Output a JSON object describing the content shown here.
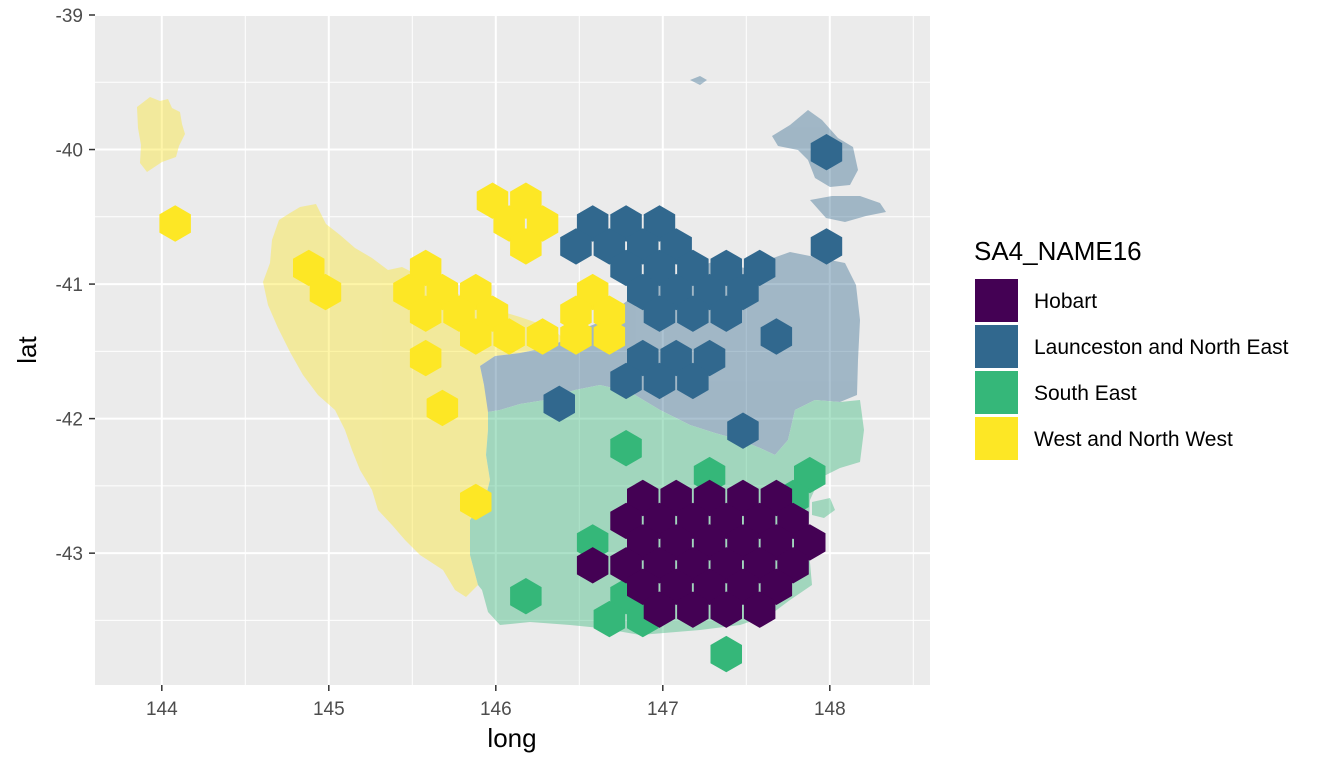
{
  "chart_data": {
    "type": "map",
    "xlabel": "long",
    "ylabel": "lat",
    "xlim": [
      143.6,
      148.6
    ],
    "ylim": [
      -43.98,
      -39.0
    ],
    "x_ticks": [
      144,
      145,
      146,
      147,
      148
    ],
    "x_tick_labels": [
      "144",
      "145",
      "146",
      "147",
      "148"
    ],
    "y_ticks": [
      -39,
      -40,
      -41,
      -42,
      -43
    ],
    "y_tick_labels": [
      "-39",
      "-40",
      "-41",
      "-42",
      "-43"
    ],
    "grid": true,
    "panel_color": "#ebebeb",
    "legend": {
      "title": "SA4_NAME16",
      "position": "right",
      "entries": [
        {
          "name": "Hobart",
          "color": "#440154"
        },
        {
          "name": "Launceston and North East",
          "color": "#31688e"
        },
        {
          "name": "South East",
          "color": "#35b779"
        },
        {
          "name": "West and North West",
          "color": "#fde725"
        }
      ]
    },
    "region_fill_alpha": 0.4,
    "hexagons": [
      {
        "region": "West and North West",
        "centers": [
          [
            144.08,
            -40.55
          ],
          [
            145.98,
            -40.38
          ],
          [
            146.18,
            -40.38
          ],
          [
            146.08,
            -40.55
          ],
          [
            146.28,
            -40.55
          ],
          [
            146.18,
            -40.72
          ],
          [
            145.58,
            -40.88
          ],
          [
            144.88,
            -40.88
          ],
          [
            144.98,
            -41.06
          ],
          [
            145.48,
            -41.06
          ],
          [
            145.68,
            -41.06
          ],
          [
            145.88,
            -41.06
          ],
          [
            146.58,
            -41.06
          ],
          [
            145.58,
            -41.22
          ],
          [
            145.78,
            -41.22
          ],
          [
            145.98,
            -41.22
          ],
          [
            146.48,
            -41.22
          ],
          [
            146.68,
            -41.22
          ],
          [
            145.88,
            -41.39
          ],
          [
            146.08,
            -41.39
          ],
          [
            146.28,
            -41.39
          ],
          [
            146.48,
            -41.39
          ],
          [
            146.68,
            -41.39
          ],
          [
            145.58,
            -41.55
          ],
          [
            145.68,
            -41.92
          ],
          [
            145.88,
            -42.62
          ]
        ]
      },
      {
        "region": "Launceston and North East",
        "centers": [
          [
            147.98,
            -40.02
          ],
          [
            146.58,
            -40.55
          ],
          [
            146.78,
            -40.55
          ],
          [
            146.98,
            -40.55
          ],
          [
            147.98,
            -40.72
          ],
          [
            146.48,
            -40.72
          ],
          [
            146.68,
            -40.72
          ],
          [
            146.88,
            -40.72
          ],
          [
            147.08,
            -40.72
          ],
          [
            146.78,
            -40.88
          ],
          [
            146.98,
            -40.88
          ],
          [
            147.18,
            -40.88
          ],
          [
            147.38,
            -40.88
          ],
          [
            147.58,
            -40.88
          ],
          [
            146.88,
            -41.06
          ],
          [
            147.08,
            -41.06
          ],
          [
            147.28,
            -41.06
          ],
          [
            147.48,
            -41.06
          ],
          [
            146.98,
            -41.22
          ],
          [
            147.18,
            -41.22
          ],
          [
            147.38,
            -41.22
          ],
          [
            147.68,
            -41.39
          ],
          [
            146.88,
            -41.55
          ],
          [
            147.08,
            -41.55
          ],
          [
            147.28,
            -41.55
          ],
          [
            146.78,
            -41.72
          ],
          [
            146.98,
            -41.72
          ],
          [
            147.18,
            -41.72
          ],
          [
            146.38,
            -41.89
          ],
          [
            147.48,
            -42.09
          ]
        ]
      },
      {
        "region": "South East",
        "centers": [
          [
            146.78,
            -42.22
          ],
          [
            147.28,
            -42.42
          ],
          [
            147.88,
            -42.42
          ],
          [
            147.78,
            -42.59
          ],
          [
            146.58,
            -42.92
          ],
          [
            146.18,
            -43.32
          ],
          [
            146.78,
            -43.32
          ],
          [
            146.68,
            -43.49
          ],
          [
            146.88,
            -43.49
          ],
          [
            147.38,
            -43.75
          ]
        ]
      },
      {
        "region": "Hobart",
        "centers": [
          [
            146.88,
            -42.59
          ],
          [
            147.08,
            -42.59
          ],
          [
            147.28,
            -42.59
          ],
          [
            147.48,
            -42.59
          ],
          [
            147.68,
            -42.59
          ],
          [
            146.78,
            -42.76
          ],
          [
            146.98,
            -42.76
          ],
          [
            147.18,
            -42.76
          ],
          [
            147.38,
            -42.76
          ],
          [
            147.58,
            -42.76
          ],
          [
            147.78,
            -42.76
          ],
          [
            146.88,
            -42.92
          ],
          [
            147.08,
            -42.92
          ],
          [
            147.28,
            -42.92
          ],
          [
            147.48,
            -42.92
          ],
          [
            147.68,
            -42.92
          ],
          [
            147.88,
            -42.92
          ],
          [
            146.58,
            -43.09
          ],
          [
            146.78,
            -43.09
          ],
          [
            146.98,
            -43.09
          ],
          [
            147.18,
            -43.09
          ],
          [
            147.38,
            -43.09
          ],
          [
            147.58,
            -43.09
          ],
          [
            147.78,
            -43.09
          ],
          [
            146.88,
            -43.25
          ],
          [
            147.08,
            -43.25
          ],
          [
            147.28,
            -43.25
          ],
          [
            147.48,
            -43.25
          ],
          [
            147.68,
            -43.25
          ],
          [
            146.98,
            -43.42
          ],
          [
            147.18,
            -43.42
          ],
          [
            147.38,
            -43.42
          ],
          [
            147.58,
            -43.42
          ]
        ]
      }
    ]
  }
}
